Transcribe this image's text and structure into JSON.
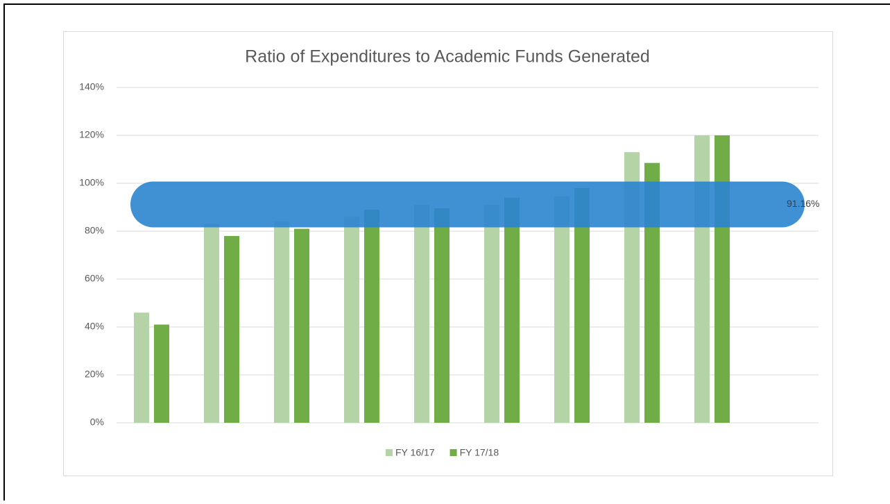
{
  "chart_data": {
    "type": "bar",
    "title": "Ratio of Expenditures to Academic Funds Generated",
    "categories": [
      null,
      null,
      null,
      null,
      null,
      null,
      null,
      null,
      null
    ],
    "series": [
      {
        "name": "FY 16/17",
        "color": "#b4d3a6",
        "values": [
          46,
          83,
          84,
          86,
          91,
          91,
          94.5,
          113,
          120
        ]
      },
      {
        "name": "FY 17/18",
        "color": "#70ad47",
        "values": [
          41,
          78,
          81,
          89,
          89.5,
          94,
          98,
          108.5,
          120
        ]
      }
    ],
    "ylim": [
      0,
      140
    ],
    "yticks": [
      {
        "value": 0,
        "label": "0%"
      },
      {
        "value": 20,
        "label": "20%"
      },
      {
        "value": 40,
        "label": "40%"
      },
      {
        "value": 60,
        "label": "60%"
      },
      {
        "value": 80,
        "label": "80%"
      },
      {
        "value": 100,
        "label": "100%"
      },
      {
        "value": 120,
        "label": "120%"
      },
      {
        "value": 140,
        "label": "140%"
      }
    ],
    "grid": true,
    "legend": "bottom",
    "average_line": {
      "value": 91.16,
      "label": "91.16%",
      "color": "#2b84cf"
    }
  }
}
